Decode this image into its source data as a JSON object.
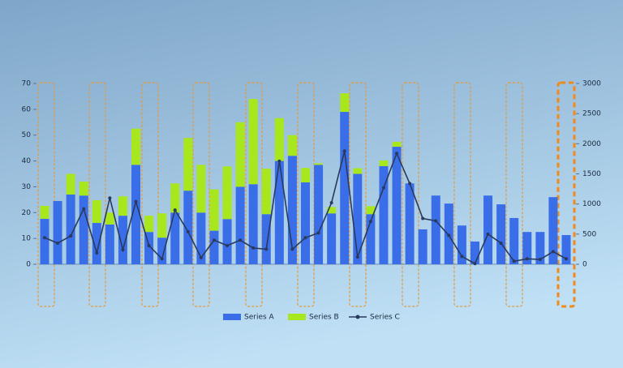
{
  "chart_data": {
    "type": "bar-line",
    "categories": [
      null,
      null,
      null,
      null,
      null,
      null,
      null,
      null,
      null,
      null,
      null,
      null,
      null,
      null,
      null,
      null,
      null,
      null,
      null,
      null,
      null,
      null,
      null,
      null,
      null,
      null,
      null,
      null,
      null,
      null,
      null,
      null,
      null,
      null,
      null,
      null,
      null,
      null,
      null,
      null,
      null
    ],
    "series": [
      {
        "name": "Series A",
        "color": "#3a6ee8",
        "type": "bar",
        "values": [
          17.6,
          24.5,
          27,
          26.6,
          16,
          15.4,
          18.8,
          38.5,
          12.5,
          10.3,
          20,
          28.5,
          20,
          13,
          17.5,
          30,
          31,
          19.4,
          40,
          42,
          31.7,
          38.5,
          19.7,
          59,
          35,
          19.4,
          38,
          45.5,
          31.3,
          13.5,
          26.6,
          23.5,
          15,
          8.8,
          26.6,
          23.2,
          17.9,
          12.5,
          12.5,
          26,
          11.3
        ]
      },
      {
        "name": "Series B",
        "color": "#a8e61e",
        "type": "bar",
        "values": [
          5,
          0,
          8,
          5.4,
          8.8,
          4.6,
          7.5,
          14,
          6.3,
          9.4,
          11.3,
          20.4,
          18.5,
          16,
          20.4,
          25,
          33,
          17.6,
          16.6,
          8,
          5.6,
          0.6,
          2.5,
          7.2,
          2.2,
          3.1,
          2.2,
          1.9,
          0,
          0,
          0,
          0,
          0,
          0,
          0,
          0,
          0,
          0,
          0,
          0,
          0
        ]
      },
      {
        "name": "Series C",
        "color": "#2a3a5c",
        "type": "line",
        "axis": "y2",
        "values": [
          440,
          350,
          470,
          920,
          190,
          1100,
          240,
          1040,
          310,
          90,
          900,
          540,
          110,
          400,
          310,
          400,
          270,
          250,
          1710,
          250,
          440,
          520,
          1020,
          1880,
          120,
          710,
          1270,
          1840,
          1340,
          760,
          720,
          480,
          130,
          10,
          500,
          350,
          50,
          90,
          80,
          210,
          90
        ]
      }
    ],
    "ylim": [
      0,
      70
    ],
    "yticks": [
      0,
      10,
      20,
      30,
      40,
      50,
      60,
      70
    ],
    "y2lim": [
      0,
      3000
    ],
    "y2ticks": [
      0,
      500,
      1000,
      1500,
      2000,
      2500,
      3000
    ],
    "grid": false,
    "legend": "bottom"
  }
}
